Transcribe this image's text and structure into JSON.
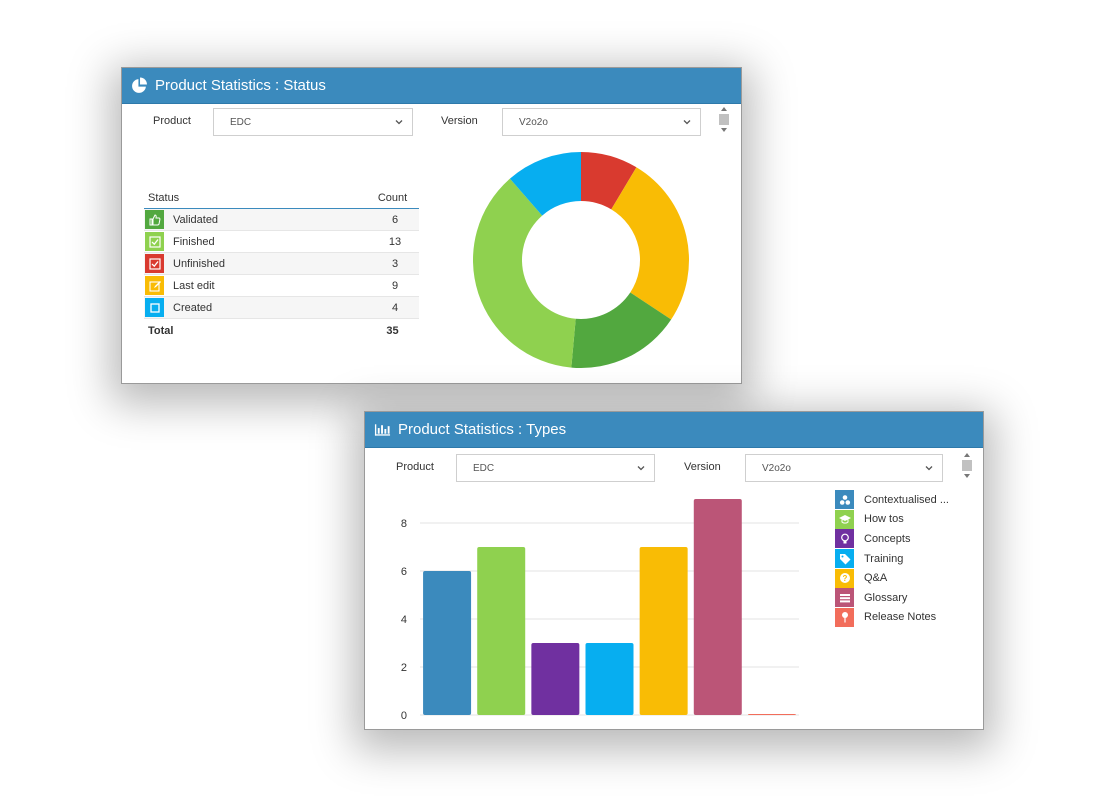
{
  "status_panel": {
    "title": "Product Statistics : Status",
    "product_label": "Product",
    "product_value": "EDC",
    "version_label": "Version",
    "version_value": "V2o2o",
    "table": {
      "col_status": "Status",
      "col_count": "Count",
      "rows": [
        {
          "label": "Validated",
          "count": "6",
          "color": "#52a83f",
          "icon": "thumbs-up-icon"
        },
        {
          "label": "Finished",
          "count": "13",
          "color": "#8fd14f",
          "icon": "check-square-icon"
        },
        {
          "label": "Unfinished",
          "count": "3",
          "color": "#d93a2f",
          "icon": "check-square-icon"
        },
        {
          "label": "Last edit",
          "count": "9",
          "color": "#f9bc05",
          "icon": "edit-icon"
        },
        {
          "label": "Created",
          "count": "4",
          "color": "#07aef0",
          "icon": "square-icon"
        }
      ],
      "total_label": "Total",
      "total_value": "35"
    },
    "chart_data": {
      "type": "pie",
      "categories": [
        "Validated",
        "Finished",
        "Unfinished",
        "Last edit",
        "Created"
      ],
      "values": [
        6,
        13,
        3,
        9,
        4
      ],
      "colors": [
        "#52a83f",
        "#8fd14f",
        "#d93a2f",
        "#f9bc05",
        "#07aef0"
      ],
      "order_clockwise_from_top": [
        "Unfinished",
        "Last edit",
        "Validated",
        "Finished",
        "Created"
      ]
    }
  },
  "types_panel": {
    "title": "Product Statistics : Types",
    "product_label": "Product",
    "product_value": "EDC",
    "version_label": "Version",
    "version_value": "V2o2o",
    "chart_data": {
      "type": "bar",
      "categories": [
        "Contextualised ...",
        "How tos",
        "Concepts",
        "Training",
        "Q&A",
        "Glossary",
        "Release Notes"
      ],
      "values": [
        6,
        7,
        3,
        3,
        7,
        9,
        0
      ],
      "colors": [
        "#3b8abd",
        "#8fd14f",
        "#7030a0",
        "#07aef0",
        "#f9bc05",
        "#bb5577",
        "#f26d5b"
      ],
      "ylim": [
        0,
        9
      ],
      "yticks": [
        0,
        2,
        4,
        6,
        8
      ],
      "grid": true,
      "legend_position": "right"
    },
    "legend": [
      {
        "label": "Contextualised ...",
        "color": "#3b8abd",
        "icon": "objects-icon"
      },
      {
        "label": "How tos",
        "color": "#8fd14f",
        "icon": "graduation-cap-icon"
      },
      {
        "label": "Concepts",
        "color": "#7030a0",
        "icon": "lightbulb-icon"
      },
      {
        "label": "Training",
        "color": "#07aef0",
        "icon": "tag-icon"
      },
      {
        "label": "Q&A",
        "color": "#f9bc05",
        "icon": "question-icon"
      },
      {
        "label": "Glossary",
        "color": "#bb5577",
        "icon": "list-icon"
      },
      {
        "label": "Release Notes",
        "color": "#f26d5b",
        "icon": "pin-icon"
      }
    ]
  }
}
